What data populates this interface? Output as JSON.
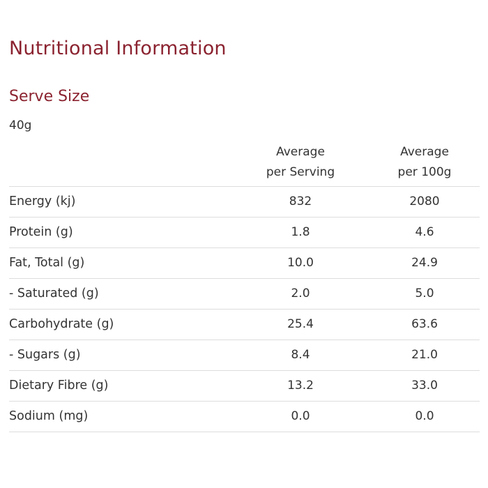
{
  "title": "Nutritional Information",
  "serve_size": {
    "heading": "Serve Size",
    "value": "40g"
  },
  "table": {
    "headers": [
      [
        "Average",
        "per Serving"
      ],
      [
        "Average",
        "per 100g"
      ]
    ],
    "rows": [
      {
        "label": "Energy (kj)",
        "serving": "832",
        "per100": "2080"
      },
      {
        "label": "Protein (g)",
        "serving": "1.8",
        "per100": "4.6"
      },
      {
        "label": "Fat, Total (g)",
        "serving": "10.0",
        "per100": "24.9"
      },
      {
        "label": "- Saturated (g)",
        "serving": "2.0",
        "per100": "5.0"
      },
      {
        "label": "Carbohydrate (g)",
        "serving": "25.4",
        "per100": "63.6"
      },
      {
        "label": "- Sugars (g)",
        "serving": "8.4",
        "per100": "21.0"
      },
      {
        "label": "Dietary Fibre (g)",
        "serving": "13.2",
        "per100": "33.0"
      },
      {
        "label": "Sodium (mg)",
        "serving": "0.0",
        "per100": "0.0"
      }
    ]
  },
  "colors": {
    "accent": "#8b2330",
    "text": "#333333",
    "divider": "#dddddd"
  }
}
